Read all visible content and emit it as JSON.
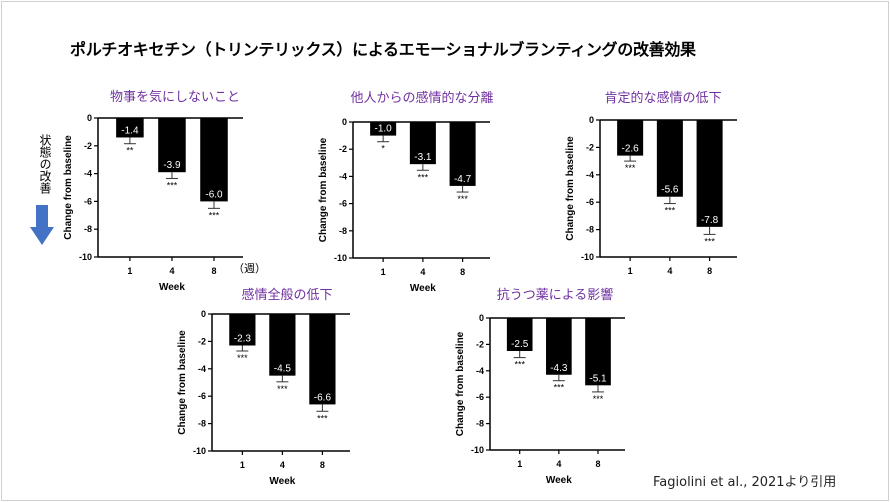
{
  "title": "ポルチオキセチン（トリンテリックス）によるエモーショナルブランティングの改善効果",
  "improvement_label": "状態の改善",
  "week_unit_label": "（週）",
  "citation": "Fagiolini et al., 2021より引用",
  "colors": {
    "bar": "#000000",
    "title": "#7030a0",
    "arrow": "#4472c4"
  },
  "chart_data": [
    {
      "type": "bar",
      "title": "物事を気にしないこと",
      "categories": [
        "1",
        "4",
        "8"
      ],
      "values": [
        -1.4,
        -3.9,
        -6.0
      ],
      "error": [
        0.45,
        0.45,
        0.5
      ],
      "significance": [
        "**",
        "***",
        "***"
      ],
      "data_labels": [
        "-1.4",
        "-3.9",
        "-6.0"
      ],
      "xlabel": "Week",
      "ylabel": "Change from baseline",
      "ylim": [
        -10,
        0
      ],
      "yticks": [
        "0",
        "-2",
        "-4",
        "-6",
        "-8",
        "-10"
      ]
    },
    {
      "type": "bar",
      "title": "他人からの感情的な分離",
      "categories": [
        "1",
        "4",
        "8"
      ],
      "values": [
        -1.0,
        -3.1,
        -4.7
      ],
      "error": [
        0.45,
        0.45,
        0.45
      ],
      "significance": [
        "*",
        "***",
        "***"
      ],
      "data_labels": [
        "-1.0",
        "-3.1",
        "-4.7"
      ],
      "xlabel": "Week",
      "ylabel": "Change from baseline",
      "ylim": [
        -10,
        0
      ],
      "yticks": [
        "0",
        "-2",
        "-4",
        "-6",
        "-8",
        "-10"
      ]
    },
    {
      "type": "bar",
      "title": "肯定的な感情の低下",
      "categories": [
        "1",
        "4",
        "8"
      ],
      "values": [
        -2.6,
        -5.6,
        -7.8
      ],
      "error": [
        0.4,
        0.5,
        0.55
      ],
      "significance": [
        "***",
        "***",
        "***"
      ],
      "data_labels": [
        "-2.6",
        "-5.6",
        "-7.8"
      ],
      "xlabel": "",
      "ylabel": "Change from baseline",
      "ylim": [
        -10,
        0
      ],
      "yticks": [
        "0",
        "-2",
        "-4",
        "-6",
        "-8",
        "-10"
      ]
    },
    {
      "type": "bar",
      "title": "感情全般の低下",
      "categories": [
        "1",
        "4",
        "8"
      ],
      "values": [
        -2.3,
        -4.5,
        -6.6
      ],
      "error": [
        0.4,
        0.45,
        0.5
      ],
      "significance": [
        "***",
        "***",
        "***"
      ],
      "data_labels": [
        "-2.3",
        "-4.5",
        "-6.6"
      ],
      "xlabel": "Week",
      "ylabel": "Change from baseline",
      "ylim": [
        -10,
        0
      ],
      "yticks": [
        "0",
        "-2",
        "-4",
        "-6",
        "-8",
        "-10"
      ]
    },
    {
      "type": "bar",
      "title": "抗うつ薬による影響",
      "categories": [
        "1",
        "4",
        "8"
      ],
      "values": [
        -2.5,
        -4.3,
        -5.1
      ],
      "error": [
        0.5,
        0.45,
        0.5
      ],
      "significance": [
        "***",
        "***",
        "***"
      ],
      "data_labels": [
        "-2.5",
        "-4.3",
        "-5.1"
      ],
      "xlabel": "Week",
      "ylabel": "Change from baseline",
      "ylim": [
        -10,
        0
      ],
      "yticks": [
        "0",
        "-2",
        "-4",
        "-6",
        "-8",
        "-10"
      ]
    }
  ]
}
